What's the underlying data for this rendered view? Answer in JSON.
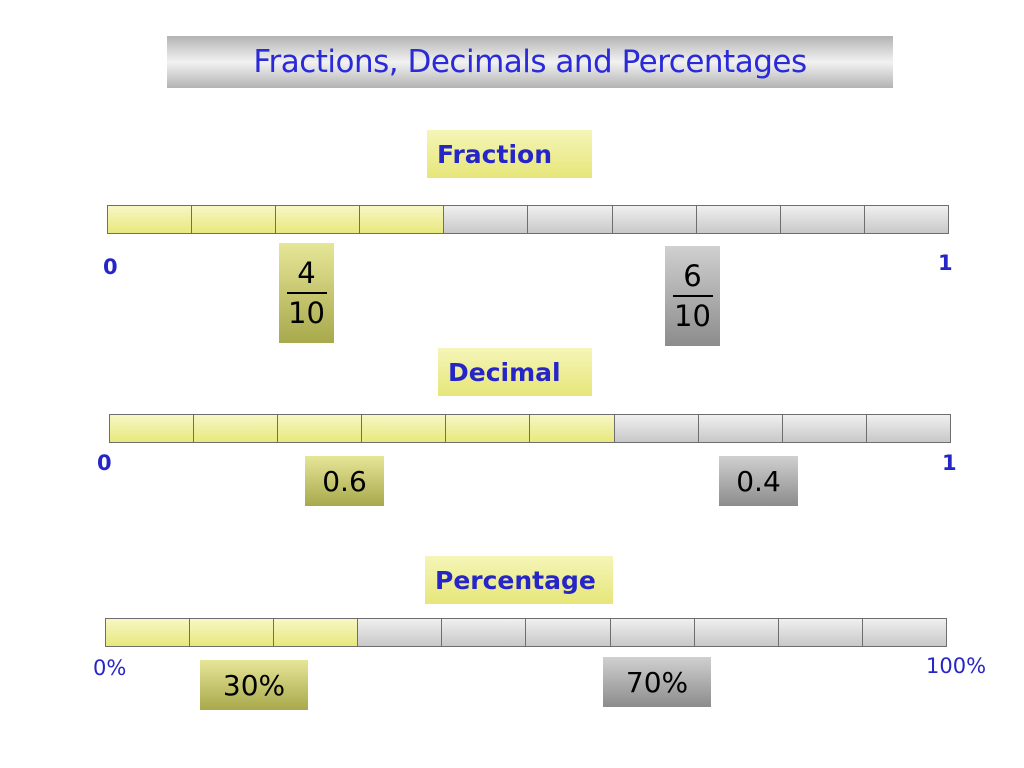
{
  "title": "Fractions, Decimals and Percentages",
  "sections": {
    "fraction": {
      "label": "Fraction",
      "start": "0",
      "end": "1",
      "segments": 10,
      "shaded": 4,
      "left_value": {
        "numerator": "4",
        "denominator": "10"
      },
      "right_value": {
        "numerator": "6",
        "denominator": "10"
      }
    },
    "decimal": {
      "label": "Decimal",
      "start": "0",
      "end": "1",
      "segments": 10,
      "shaded": 6,
      "left_value": "0.6",
      "right_value": "0.4"
    },
    "percentage": {
      "label": "Percentage",
      "start": "0%",
      "end": "100%",
      "segments": 10,
      "shaded": 3,
      "left_value": "30%",
      "right_value": "70%"
    }
  },
  "colors": {
    "shaded": "#e8e87e",
    "unshaded": "#c8c8c8",
    "label_text": "#2626c8"
  }
}
